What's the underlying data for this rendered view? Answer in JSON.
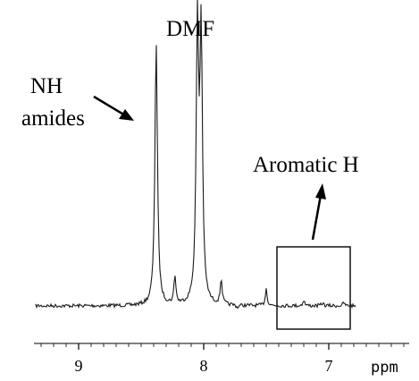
{
  "chart_data": {
    "type": "line",
    "title": "",
    "xlabel": "ppm",
    "ylabel": "",
    "x_reversed": true,
    "xlim": [
      9.5,
      6.3
    ],
    "grid": false,
    "legend": "none",
    "ticks": [
      {
        "value": 9,
        "label": "9"
      },
      {
        "value": 8,
        "label": "8"
      },
      {
        "value": 7,
        "label": "7"
      }
    ],
    "baseline": 0.05,
    "peaks": [
      {
        "ppm": 8.38,
        "height": 0.98
      },
      {
        "ppm": 8.23,
        "height": 0.15
      },
      {
        "ppm": 8.05,
        "height": 1.0
      },
      {
        "ppm": 8.02,
        "height": 0.98
      },
      {
        "ppm": 7.86,
        "height": 0.14
      },
      {
        "ppm": 7.82,
        "height": 0.05
      },
      {
        "ppm": 7.73,
        "height": 0.04
      },
      {
        "ppm": 7.5,
        "height": 0.11
      },
      {
        "ppm": 7.2,
        "height": 0.07
      },
      {
        "ppm": 7.05,
        "height": 0.06
      },
      {
        "ppm": 6.88,
        "height": 0.06
      }
    ],
    "annotations": [
      {
        "text": "DMF",
        "ppm": 8.05
      },
      {
        "text": "NH",
        "line": 1
      },
      {
        "text": "amides",
        "line": 2
      },
      {
        "text": "Aromatic H",
        "region_ppm": [
          7.35,
          6.72
        ]
      }
    ]
  },
  "colors": {
    "trace": "#1a1a1a",
    "axis": "#000000",
    "background": "#ffffff"
  }
}
